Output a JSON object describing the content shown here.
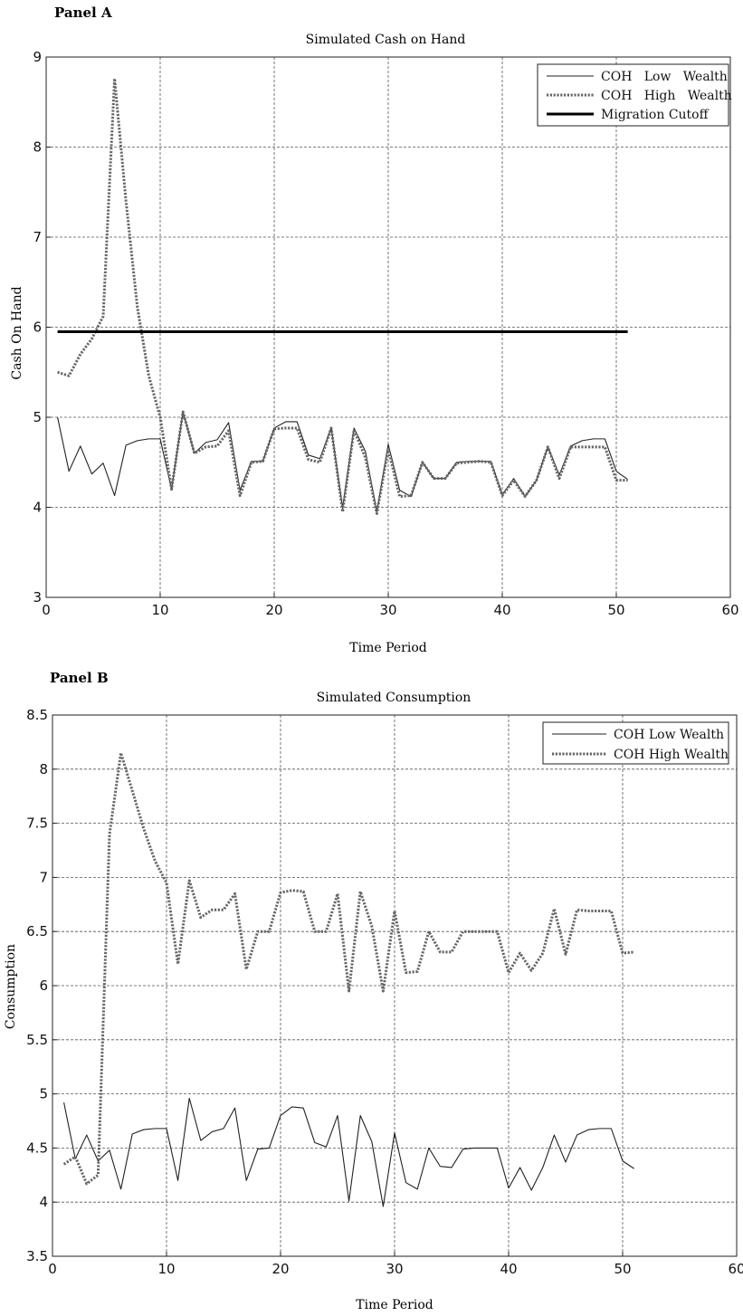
{
  "panels": [
    {
      "label": "Panel A",
      "chart_data": {
        "type": "line",
        "title": "Simulated Cash on Hand",
        "xlabel": "Time Period",
        "ylabel": "Cash On Hand",
        "xlim": [
          0,
          60
        ],
        "ylim": [
          3,
          9
        ],
        "xticks": [
          "0",
          "10",
          "20",
          "30",
          "40",
          "50",
          "60"
        ],
        "yticks": [
          "3",
          "4",
          "5",
          "6",
          "7",
          "8",
          "9"
        ],
        "grid": true,
        "legend_position": "top-right",
        "x": [
          1,
          2,
          3,
          4,
          5,
          6,
          7,
          8,
          9,
          10,
          11,
          12,
          13,
          14,
          15,
          16,
          17,
          18,
          19,
          20,
          21,
          22,
          23,
          24,
          25,
          26,
          27,
          28,
          29,
          30,
          31,
          32,
          33,
          34,
          35,
          36,
          37,
          38,
          39,
          40,
          41,
          42,
          43,
          44,
          45,
          46,
          47,
          48,
          49,
          50,
          51
        ],
        "series": [
          {
            "name": "COH   Low   Wealth",
            "style": "solid-thin",
            "color": "#222222",
            "values": [
              5.0,
              4.4,
              4.68,
              4.37,
              4.49,
              4.13,
              4.69,
              4.74,
              4.76,
              4.76,
              4.2,
              5.06,
              4.6,
              4.72,
              4.75,
              4.94,
              4.19,
              4.51,
              4.51,
              4.88,
              4.95,
              4.95,
              4.58,
              4.54,
              4.88,
              3.99,
              4.88,
              4.62,
              3.95,
              4.7,
              4.19,
              4.12,
              4.5,
              4.32,
              4.32,
              4.5,
              4.51,
              4.51,
              4.51,
              4.14,
              4.32,
              4.12,
              4.3,
              4.67,
              4.36,
              4.68,
              4.74,
              4.76,
              4.76,
              4.4,
              4.31
            ]
          },
          {
            "name": "COH   High   Wealth",
            "style": "dotted",
            "color": "#666666",
            "values": [
              5.5,
              5.46,
              5.7,
              5.87,
              6.12,
              8.76,
              7.4,
              6.22,
              5.46,
              5.0,
              4.2,
              5.06,
              4.6,
              4.67,
              4.68,
              4.85,
              4.13,
              4.5,
              4.51,
              4.87,
              4.88,
              4.88,
              4.53,
              4.5,
              4.88,
              3.95,
              4.86,
              4.55,
              3.93,
              4.65,
              4.12,
              4.13,
              4.5,
              4.32,
              4.32,
              4.49,
              4.5,
              4.51,
              4.5,
              4.13,
              4.3,
              4.12,
              4.3,
              4.67,
              4.32,
              4.67,
              4.67,
              4.67,
              4.67,
              4.3,
              4.3
            ]
          },
          {
            "name": "Migration Cutoff",
            "style": "solid-thick",
            "color": "#000000",
            "values": [
              5.95,
              5.95,
              5.95,
              5.95,
              5.95,
              5.95,
              5.95,
              5.95,
              5.95,
              5.95,
              5.95,
              5.95,
              5.95,
              5.95,
              5.95,
              5.95,
              5.95,
              5.95,
              5.95,
              5.95,
              5.95,
              5.95,
              5.95,
              5.95,
              5.95,
              5.95,
              5.95,
              5.95,
              5.95,
              5.95,
              5.95,
              5.95,
              5.95,
              5.95,
              5.95,
              5.95,
              5.95,
              5.95,
              5.95,
              5.95,
              5.95,
              5.95,
              5.95,
              5.95,
              5.95,
              5.95,
              5.95,
              5.95,
              5.95,
              5.95,
              5.95
            ]
          }
        ]
      }
    },
    {
      "label": "Panel B",
      "chart_data": {
        "type": "line",
        "title": "Simulated Consumption",
        "xlabel": "Time Period",
        "ylabel": "Consumption",
        "xlim": [
          0,
          60
        ],
        "ylim": [
          3.5,
          8.5
        ],
        "xticks": [
          "0",
          "10",
          "20",
          "30",
          "40",
          "50",
          "60"
        ],
        "yticks": [
          "3.5",
          "4",
          "4.5",
          "5",
          "5.5",
          "6",
          "6.5",
          "7",
          "7.5",
          "8",
          "8.5"
        ],
        "grid": true,
        "legend_position": "top-right",
        "x": [
          1,
          2,
          3,
          4,
          5,
          6,
          7,
          8,
          9,
          10,
          11,
          12,
          13,
          14,
          15,
          16,
          17,
          18,
          19,
          20,
          21,
          22,
          23,
          24,
          25,
          26,
          27,
          28,
          29,
          30,
          31,
          32,
          33,
          34,
          35,
          36,
          37,
          38,
          39,
          40,
          41,
          42,
          43,
          44,
          45,
          46,
          47,
          48,
          49,
          50,
          51
        ],
        "series": [
          {
            "name": "COH Low Wealth",
            "style": "solid-thin",
            "color": "#222222",
            "values": [
              4.92,
              4.4,
              4.62,
              4.38,
              4.48,
              4.12,
              4.63,
              4.67,
              4.68,
              4.68,
              4.2,
              4.96,
              4.57,
              4.65,
              4.68,
              4.87,
              4.2,
              4.49,
              4.5,
              4.8,
              4.88,
              4.87,
              4.55,
              4.51,
              4.8,
              4.01,
              4.8,
              4.56,
              3.96,
              4.64,
              4.18,
              4.12,
              4.5,
              4.33,
              4.32,
              4.49,
              4.5,
              4.5,
              4.5,
              4.13,
              4.32,
              4.11,
              4.32,
              4.62,
              4.37,
              4.62,
              4.67,
              4.68,
              4.68,
              4.38,
              4.31
            ]
          },
          {
            "name": "COH High Wealth",
            "style": "dotted",
            "color": "#666666",
            "values": [
              4.35,
              4.42,
              4.17,
              4.25,
              7.4,
              8.15,
              7.8,
              7.45,
              7.15,
              6.95,
              6.2,
              6.97,
              6.63,
              6.7,
              6.7,
              6.85,
              6.15,
              6.5,
              6.5,
              6.86,
              6.88,
              6.87,
              6.5,
              6.5,
              6.85,
              5.95,
              6.87,
              6.55,
              5.95,
              6.69,
              6.12,
              6.13,
              6.5,
              6.31,
              6.31,
              6.5,
              6.5,
              6.5,
              6.5,
              6.12,
              6.3,
              6.14,
              6.3,
              6.71,
              6.29,
              6.7,
              6.69,
              6.69,
              6.69,
              6.3,
              6.31
            ]
          }
        ]
      }
    }
  ]
}
